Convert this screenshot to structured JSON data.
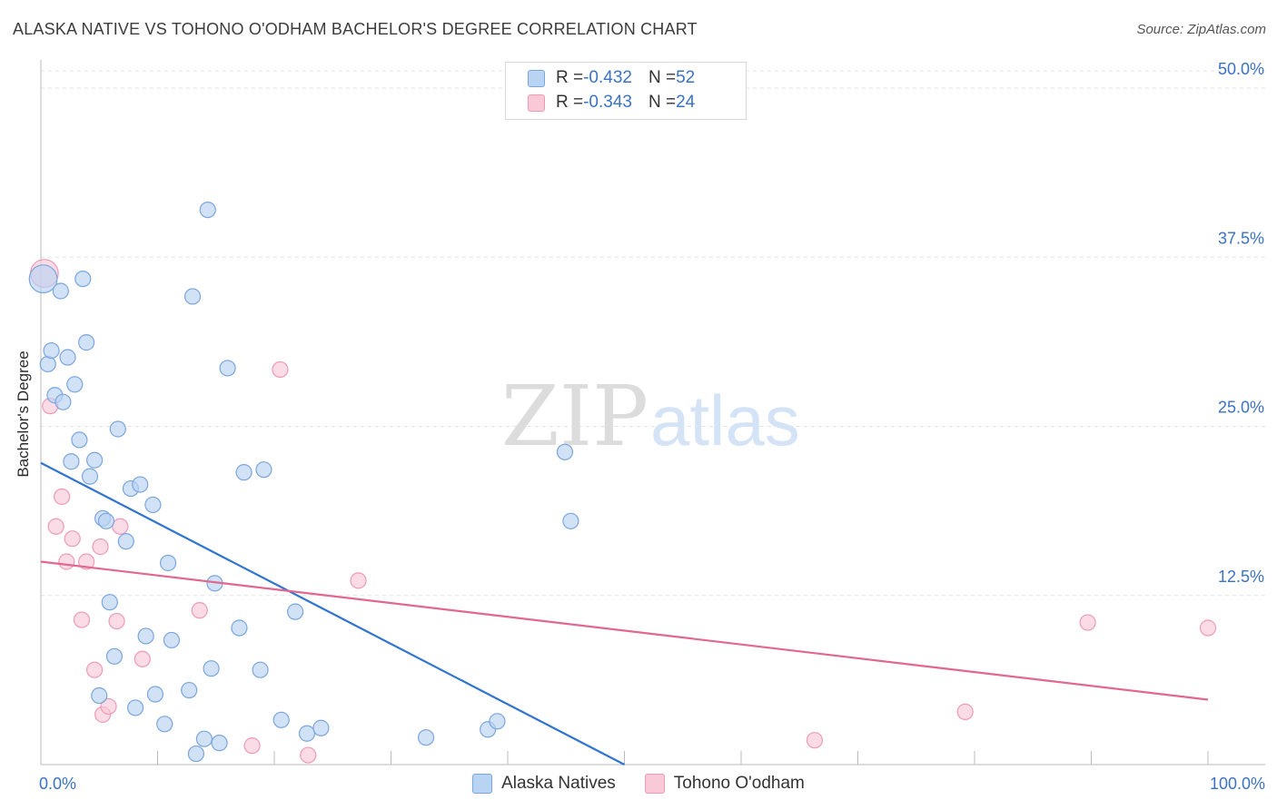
{
  "header": {
    "title": "ALASKA NATIVE VS TOHONO O'ODHAM BACHELOR'S DEGREE CORRELATION CHART",
    "source": "Source: ZipAtlas.com"
  },
  "watermark": {
    "zip": "ZIP",
    "atlas": "atlas"
  },
  "legend": {
    "r_label": "R = ",
    "n_label": "N = ",
    "series": [
      {
        "r": "-0.432",
        "n": "52"
      },
      {
        "r": "-0.343",
        "n": "24"
      }
    ]
  },
  "colors": {
    "blue_fill": "#b9d3f2",
    "blue_stroke": "#7aa6dd",
    "blue_line": "#2f74d0",
    "pink_fill": "#f9c9d8",
    "pink_stroke": "#ee9ab6",
    "pink_line": "#e2678f",
    "axis_text": "#3a72c4",
    "grid": "#e3e3e3"
  },
  "chart_data": {
    "type": "scatter",
    "title": "ALASKA NATIVE VS TOHONO O'ODHAM BACHELOR'S DEGREE CORRELATION CHART",
    "xlabel": "",
    "ylabel": "Bachelor's Degree",
    "xlim": [
      0,
      100
    ],
    "ylim": [
      0,
      52
    ],
    "x_tick_labels": [
      "0.0%",
      "100.0%"
    ],
    "y_ticks": [
      12.5,
      25.0,
      37.5,
      50.0
    ],
    "y_tick_labels": [
      "12.5%",
      "25.0%",
      "37.5%",
      "50.0%"
    ],
    "grid": "horizontal dashed",
    "legend_position": "top-center",
    "series": [
      {
        "name": "Alaska Natives",
        "r": -0.432,
        "n": 52,
        "trend": {
          "x": [
            0,
            50
          ],
          "y": [
            22.3,
            0
          ]
        },
        "points": [
          [
            0.2,
            35.9,
            1.8
          ],
          [
            0.6,
            29.6,
            1
          ],
          [
            0.9,
            30.6,
            1
          ],
          [
            1.2,
            27.3,
            1
          ],
          [
            1.7,
            35.0,
            1
          ],
          [
            1.9,
            26.8,
            1
          ],
          [
            2.3,
            30.1,
            1
          ],
          [
            2.6,
            22.4,
            1
          ],
          [
            2.9,
            28.1,
            1
          ],
          [
            3.3,
            24.0,
            1
          ],
          [
            3.6,
            35.9,
            1
          ],
          [
            3.9,
            31.2,
            1
          ],
          [
            4.2,
            21.3,
            1
          ],
          [
            4.6,
            22.5,
            1
          ],
          [
            5.0,
            5.1,
            1
          ],
          [
            5.3,
            18.2,
            1
          ],
          [
            5.6,
            18.0,
            1
          ],
          [
            5.9,
            12.0,
            1
          ],
          [
            6.3,
            8.0,
            1
          ],
          [
            6.6,
            24.8,
            1
          ],
          [
            7.3,
            16.5,
            1
          ],
          [
            7.7,
            20.4,
            1
          ],
          [
            8.1,
            4.2,
            1
          ],
          [
            8.5,
            20.7,
            1
          ],
          [
            9.0,
            9.5,
            1
          ],
          [
            9.6,
            19.2,
            1
          ],
          [
            9.8,
            5.2,
            1
          ],
          [
            10.6,
            3.0,
            1
          ],
          [
            10.9,
            14.9,
            1
          ],
          [
            11.2,
            9.2,
            1
          ],
          [
            12.7,
            5.5,
            1
          ],
          [
            13.0,
            34.6,
            1
          ],
          [
            13.3,
            0.8,
            1
          ],
          [
            14.0,
            1.9,
            1
          ],
          [
            14.3,
            41.0,
            1
          ],
          [
            14.6,
            7.1,
            1
          ],
          [
            14.9,
            13.4,
            1
          ],
          [
            15.3,
            1.6,
            1
          ],
          [
            16.0,
            29.3,
            1
          ],
          [
            17.0,
            10.1,
            1
          ],
          [
            17.4,
            21.6,
            1
          ],
          [
            18.8,
            7.0,
            1
          ],
          [
            19.1,
            21.8,
            1
          ],
          [
            20.6,
            3.3,
            1
          ],
          [
            21.8,
            11.3,
            1
          ],
          [
            22.8,
            2.3,
            1
          ],
          [
            24.0,
            2.7,
            1
          ],
          [
            33.0,
            2.0,
            1
          ],
          [
            38.3,
            2.6,
            1
          ],
          [
            39.1,
            3.2,
            1
          ],
          [
            44.9,
            23.1,
            1
          ],
          [
            45.4,
            18.0,
            1
          ]
        ]
      },
      {
        "name": "Tohono O'odham",
        "r": -0.343,
        "n": 24,
        "trend": {
          "x": [
            0,
            100
          ],
          "y": [
            15.0,
            4.8
          ]
        },
        "points": [
          [
            0.3,
            36.3,
            1.8
          ],
          [
            0.8,
            26.5,
            1
          ],
          [
            1.3,
            17.6,
            1
          ],
          [
            1.8,
            19.8,
            1
          ],
          [
            2.2,
            15.0,
            1
          ],
          [
            2.7,
            16.7,
            1
          ],
          [
            3.5,
            10.7,
            1
          ],
          [
            3.9,
            15.0,
            1
          ],
          [
            4.6,
            7.0,
            1
          ],
          [
            5.1,
            16.1,
            1
          ],
          [
            5.3,
            3.7,
            1
          ],
          [
            5.8,
            4.3,
            1
          ],
          [
            6.5,
            10.6,
            1
          ],
          [
            6.8,
            17.6,
            1
          ],
          [
            8.7,
            7.8,
            1
          ],
          [
            13.6,
            11.4,
            1
          ],
          [
            18.1,
            1.4,
            1
          ],
          [
            20.5,
            29.2,
            1
          ],
          [
            22.9,
            0.7,
            1
          ],
          [
            27.2,
            13.6,
            1
          ],
          [
            66.3,
            1.8,
            1
          ],
          [
            79.2,
            3.9,
            1
          ],
          [
            89.7,
            10.5,
            1
          ],
          [
            100.0,
            10.1,
            1
          ]
        ]
      }
    ]
  }
}
